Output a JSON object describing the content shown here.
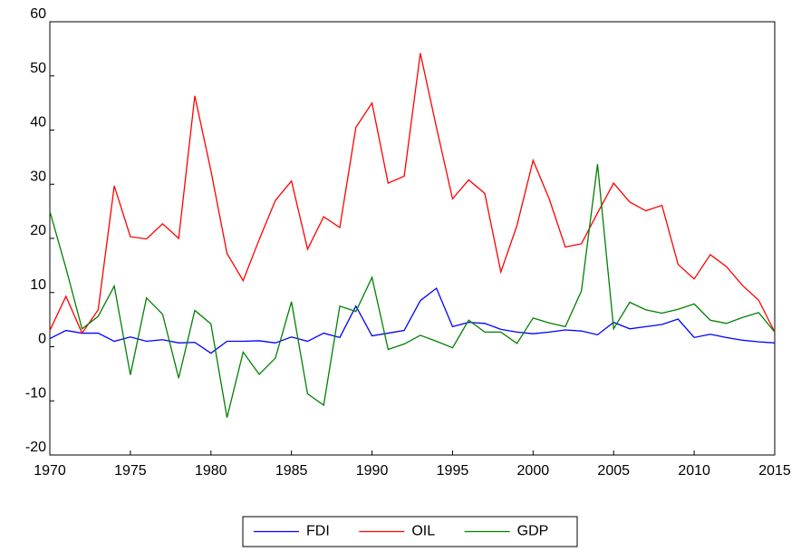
{
  "chart_data": {
    "type": "line",
    "x": [
      1970,
      1971,
      1972,
      1973,
      1974,
      1975,
      1976,
      1977,
      1978,
      1979,
      1980,
      1981,
      1982,
      1983,
      1984,
      1985,
      1986,
      1987,
      1988,
      1989,
      1990,
      1991,
      1992,
      1993,
      1994,
      1995,
      1996,
      1997,
      1998,
      1999,
      2000,
      2001,
      2002,
      2003,
      2004,
      2005,
      2006,
      2007,
      2008,
      2009,
      2010,
      2011,
      2012,
      2013,
      2014,
      2015
    ],
    "series": [
      {
        "name": "FDI",
        "color": "#0000ff",
        "values": [
          1.5,
          3,
          2.5,
          2.5,
          1,
          1.8,
          1,
          1.3,
          0.7,
          0.8,
          -1.2,
          1,
          1,
          1.1,
          0.7,
          1.8,
          1,
          2.5,
          1.7,
          7.5,
          2,
          2.5,
          3,
          8.5,
          10.8,
          3.7,
          4.5,
          4.3,
          3.2,
          2.7,
          2.4,
          2.7,
          3.1,
          2.9,
          2.2,
          4.5,
          3.3,
          3.7,
          4.1,
          5.1,
          1.7,
          2.3,
          1.7,
          1.2,
          0.9,
          0.7
        ]
      },
      {
        "name": "OIL",
        "color": "#ff0000",
        "values": [
          3,
          9.3,
          2.5,
          6.8,
          29.7,
          20.3,
          19.9,
          22.7,
          20,
          46.3,
          32.5,
          17.2,
          12.2,
          19.8,
          27,
          30.6,
          18,
          24,
          22,
          40.5,
          45,
          30.2,
          31.5,
          54.2,
          40.5,
          27.3,
          30.8,
          28.3,
          13.8,
          22.4,
          34.4,
          27.3,
          18.4,
          19,
          24.7,
          30.2,
          26.7,
          25.1,
          26.1,
          15.2,
          12.5,
          17,
          14.8,
          11.3,
          8.6,
          2.7
        ]
      },
      {
        "name": "GDP",
        "color": "#008000",
        "values": [
          25,
          14.5,
          3.3,
          5.6,
          11.2,
          -5.2,
          9,
          6,
          -5.8,
          6.7,
          4.2,
          -13.1,
          -1,
          -5.1,
          -2.1,
          8.3,
          -8.7,
          -10.8,
          7.5,
          6.5,
          12.8,
          -0.5,
          0.5,
          2.1,
          1,
          -0.2,
          4.9,
          2.7,
          2.7,
          0.6,
          5.3,
          4.4,
          3.7,
          10.3,
          33.7,
          3.3,
          8.2,
          6.8,
          6.2,
          6.9,
          7.9,
          4.9,
          4.3,
          5.4,
          6.3,
          2.7
        ]
      }
    ],
    "xlim": [
      1970,
      2015
    ],
    "xticks": [
      1970,
      1975,
      1980,
      1985,
      1990,
      1995,
      2000,
      2005,
      2010,
      2015
    ],
    "ylim": [
      -20,
      60
    ],
    "yticks": [
      -20,
      -10,
      0,
      10,
      20,
      30,
      40,
      50,
      60
    ],
    "grid": false,
    "legend": "bottom"
  }
}
